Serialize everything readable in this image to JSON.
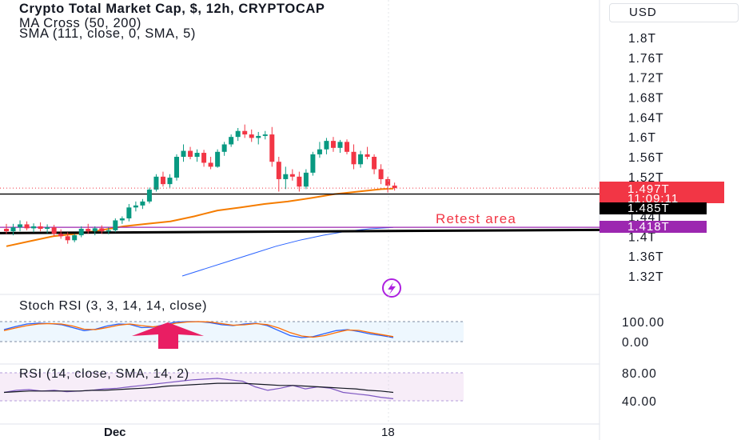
{
  "header": {
    "title": "Crypto Total Market Cap, $, 12h, CRYPTOCAP",
    "indicator_1": "MA Cross (50, 200)",
    "indicator_2": "SMA (111, close, 0, SMA, 5)"
  },
  "currency_button": "USD",
  "chart_data": [
    {
      "type": "candlestick",
      "title": "Crypto Total Market Cap, $, 12h, CRYPTOCAP",
      "y_ticks": [
        "1.8T",
        "1.76T",
        "1.72T",
        "1.68T",
        "1.64T",
        "1.6T",
        "1.56T",
        "1.52T",
        "1.48T",
        "1.44T",
        "1.4T",
        "1.36T",
        "1.32T"
      ],
      "ylim": [
        1.31,
        1.81
      ],
      "x_ticks": [
        "Dec",
        "18"
      ],
      "candles": [
        {
          "o": 1.415,
          "h": 1.425,
          "l": 1.405,
          "c": 1.41
        },
        {
          "o": 1.41,
          "h": 1.425,
          "l": 1.402,
          "c": 1.418
        },
        {
          "o": 1.418,
          "h": 1.432,
          "l": 1.41,
          "c": 1.424
        },
        {
          "o": 1.424,
          "h": 1.43,
          "l": 1.412,
          "c": 1.416
        },
        {
          "o": 1.416,
          "h": 1.426,
          "l": 1.408,
          "c": 1.42
        },
        {
          "o": 1.42,
          "h": 1.428,
          "l": 1.41,
          "c": 1.415
        },
        {
          "o": 1.415,
          "h": 1.424,
          "l": 1.406,
          "c": 1.418
        },
        {
          "o": 1.418,
          "h": 1.423,
          "l": 1.4,
          "c": 1.405
        },
        {
          "o": 1.405,
          "h": 1.414,
          "l": 1.395,
          "c": 1.4
        },
        {
          "o": 1.4,
          "h": 1.408,
          "l": 1.385,
          "c": 1.392
        },
        {
          "o": 1.392,
          "h": 1.405,
          "l": 1.388,
          "c": 1.402
        },
        {
          "o": 1.402,
          "h": 1.42,
          "l": 1.398,
          "c": 1.415
        },
        {
          "o": 1.415,
          "h": 1.425,
          "l": 1.405,
          "c": 1.41
        },
        {
          "o": 1.41,
          "h": 1.42,
          "l": 1.402,
          "c": 1.416
        },
        {
          "o": 1.416,
          "h": 1.422,
          "l": 1.405,
          "c": 1.41
        },
        {
          "o": 1.41,
          "h": 1.418,
          "l": 1.404,
          "c": 1.412
        },
        {
          "o": 1.412,
          "h": 1.436,
          "l": 1.408,
          "c": 1.432
        },
        {
          "o": 1.432,
          "h": 1.44,
          "l": 1.425,
          "c": 1.436
        },
        {
          "o": 1.436,
          "h": 1.465,
          "l": 1.43,
          "c": 1.458
        },
        {
          "o": 1.458,
          "h": 1.47,
          "l": 1.45,
          "c": 1.462
        },
        {
          "o": 1.462,
          "h": 1.475,
          "l": 1.455,
          "c": 1.47
        },
        {
          "o": 1.47,
          "h": 1.498,
          "l": 1.466,
          "c": 1.494
        },
        {
          "o": 1.494,
          "h": 1.525,
          "l": 1.49,
          "c": 1.52
        },
        {
          "o": 1.52,
          "h": 1.53,
          "l": 1.5,
          "c": 1.505
        },
        {
          "o": 1.505,
          "h": 1.525,
          "l": 1.498,
          "c": 1.518
        },
        {
          "o": 1.518,
          "h": 1.565,
          "l": 1.512,
          "c": 1.56
        },
        {
          "o": 1.56,
          "h": 1.585,
          "l": 1.55,
          "c": 1.572
        },
        {
          "o": 1.572,
          "h": 1.58,
          "l": 1.555,
          "c": 1.56
        },
        {
          "o": 1.56,
          "h": 1.575,
          "l": 1.55,
          "c": 1.568
        },
        {
          "o": 1.568,
          "h": 1.574,
          "l": 1.54,
          "c": 1.548
        },
        {
          "o": 1.548,
          "h": 1.56,
          "l": 1.535,
          "c": 1.54
        },
        {
          "o": 1.54,
          "h": 1.575,
          "l": 1.538,
          "c": 1.57
        },
        {
          "o": 1.57,
          "h": 1.59,
          "l": 1.562,
          "c": 1.585
        },
        {
          "o": 1.585,
          "h": 1.605,
          "l": 1.58,
          "c": 1.6
        },
        {
          "o": 1.6,
          "h": 1.618,
          "l": 1.592,
          "c": 1.612
        },
        {
          "o": 1.612,
          "h": 1.625,
          "l": 1.598,
          "c": 1.605
        },
        {
          "o": 1.605,
          "h": 1.615,
          "l": 1.59,
          "c": 1.598
        },
        {
          "o": 1.598,
          "h": 1.61,
          "l": 1.585,
          "c": 1.602
        },
        {
          "o": 1.602,
          "h": 1.612,
          "l": 1.595,
          "c": 1.605
        },
        {
          "o": 1.605,
          "h": 1.62,
          "l": 1.54,
          "c": 1.55
        },
        {
          "o": 1.55,
          "h": 1.56,
          "l": 1.49,
          "c": 1.515
        },
        {
          "o": 1.515,
          "h": 1.54,
          "l": 1.495,
          "c": 1.525
        },
        {
          "o": 1.525,
          "h": 1.535,
          "l": 1.512,
          "c": 1.52
        },
        {
          "o": 1.52,
          "h": 1.53,
          "l": 1.49,
          "c": 1.5
        },
        {
          "o": 1.5,
          "h": 1.535,
          "l": 1.495,
          "c": 1.528
        },
        {
          "o": 1.528,
          "h": 1.57,
          "l": 1.522,
          "c": 1.565
        },
        {
          "o": 1.565,
          "h": 1.59,
          "l": 1.558,
          "c": 1.575
        },
        {
          "o": 1.575,
          "h": 1.598,
          "l": 1.565,
          "c": 1.592
        },
        {
          "o": 1.592,
          "h": 1.6,
          "l": 1.57,
          "c": 1.578
        },
        {
          "o": 1.578,
          "h": 1.594,
          "l": 1.568,
          "c": 1.59
        },
        {
          "o": 1.59,
          "h": 1.595,
          "l": 1.565,
          "c": 1.57
        },
        {
          "o": 1.57,
          "h": 1.585,
          "l": 1.535,
          "c": 1.545
        },
        {
          "o": 1.545,
          "h": 1.572,
          "l": 1.538,
          "c": 1.565
        },
        {
          "o": 1.565,
          "h": 1.58,
          "l": 1.555,
          "c": 1.56
        },
        {
          "o": 1.56,
          "h": 1.565,
          "l": 1.525,
          "c": 1.535
        },
        {
          "o": 1.535,
          "h": 1.545,
          "l": 1.505,
          "c": 1.515
        },
        {
          "o": 1.515,
          "h": 1.52,
          "l": 1.488,
          "c": 1.502
        },
        {
          "o": 1.502,
          "h": 1.508,
          "l": 1.492,
          "c": 1.497
        }
      ],
      "ma_orange": [
        [
          0,
          1.38
        ],
        [
          20,
          1.39
        ],
        [
          40,
          1.4
        ],
        [
          60,
          1.405
        ],
        [
          80,
          1.412
        ],
        [
          100,
          1.42
        ],
        [
          120,
          1.425
        ],
        [
          140,
          1.43
        ],
        [
          160,
          1.44
        ],
        [
          180,
          1.452
        ],
        [
          200,
          1.458
        ],
        [
          220,
          1.465
        ],
        [
          240,
          1.47
        ],
        [
          260,
          1.477
        ],
        [
          280,
          1.485
        ],
        [
          300,
          1.49
        ],
        [
          320,
          1.495
        ],
        [
          330,
          1.496
        ]
      ],
      "sma_blue": [
        [
          150,
          1.32
        ],
        [
          170,
          1.335
        ],
        [
          190,
          1.35
        ],
        [
          210,
          1.365
        ],
        [
          230,
          1.38
        ],
        [
          250,
          1.392
        ],
        [
          270,
          1.402
        ],
        [
          290,
          1.41
        ],
        [
          310,
          1.415
        ],
        [
          330,
          1.418
        ]
      ],
      "horizontal_lines": [
        {
          "y": 1.485,
          "color": "#000000"
        },
        {
          "y": 1.418,
          "color": "#9c27b0"
        },
        {
          "y": 1.408,
          "color": "#000000",
          "sloped": true
        }
      ],
      "annotation": "Retest area",
      "price_labels": [
        {
          "value": "1.497T",
          "sub": "11:09:11",
          "color": "#f23645"
        },
        {
          "value": "1.485T",
          "color": "#000000"
        },
        {
          "value": "1.418T",
          "color": "#9c27b0"
        }
      ]
    },
    {
      "type": "line",
      "title": "Stoch RSI (3, 3, 14, 14, close)",
      "y_ticks": [
        "100.00",
        "0.00"
      ],
      "ylim": [
        0,
        100
      ],
      "series": [
        {
          "values": [
            60,
            75,
            88,
            92,
            90,
            85,
            70,
            55,
            62,
            78,
            88,
            86,
            70,
            72,
            85,
            98,
            100,
            100,
            95,
            85,
            80,
            88,
            92,
            80,
            55,
            30,
            20,
            25,
            40,
            55,
            60,
            50,
            38,
            30,
            20
          ]
        },
        {
          "values": [
            55,
            68,
            80,
            88,
            90,
            88,
            78,
            62,
            60,
            70,
            82,
            88,
            80,
            74,
            80,
            92,
            98,
            100,
            98,
            90,
            82,
            84,
            90,
            85,
            68,
            45,
            28,
            22,
            30,
            45,
            58,
            56,
            45,
            35,
            25
          ]
        }
      ]
    },
    {
      "type": "line",
      "title": "RSI (14, close, SMA, 14, 2)",
      "y_ticks": [
        "80.00",
        "40.00"
      ],
      "ylim": [
        30,
        85
      ],
      "series": [
        {
          "values": [
            52,
            55,
            56,
            54,
            55,
            53,
            54,
            55,
            57,
            58,
            60,
            62,
            64,
            66,
            68,
            70,
            71,
            72,
            70,
            68,
            60,
            55,
            58,
            62,
            57,
            60,
            58,
            52,
            50,
            48,
            45,
            43
          ]
        },
        {
          "values": [
            52,
            53,
            54,
            54,
            54,
            54,
            54,
            55,
            55,
            56,
            57,
            58,
            59,
            61,
            62,
            63,
            64,
            65,
            65,
            65,
            64,
            63,
            62,
            62,
            61,
            60,
            59,
            58,
            57,
            55,
            54,
            52
          ]
        }
      ]
    }
  ]
}
